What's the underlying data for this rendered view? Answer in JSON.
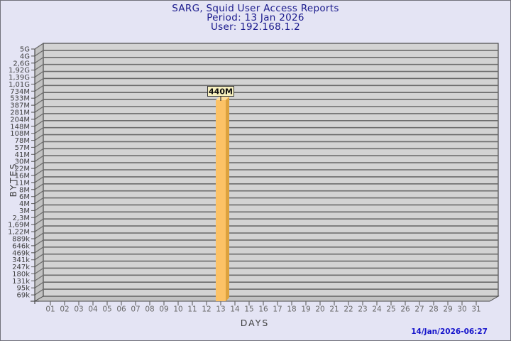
{
  "header": {
    "title": "SARG, Squid User Access Reports",
    "period": "Period: 13 Jan 2026",
    "user": "User: 192.168.1.2"
  },
  "footer": {
    "timestamp": "14/Jan/2026-06:27"
  },
  "colors": {
    "background": "#e4e4f4",
    "title_text": "#19198c",
    "timestamp_text": "#1513cb",
    "back_wall": "#d3d3d3",
    "side_wall": "#c2c2c2",
    "grid_line": "#6b6b6b",
    "wall_outline": "#4a4a4a",
    "bar_face": "#fcc266",
    "bar_side": "#dda23e",
    "bar_top": "#fedd9a",
    "bar_label_bg": "#f7f0be",
    "bar_label_border": "#3a3a3a"
  },
  "chart_data": {
    "type": "bar",
    "style": "3d-bar",
    "title": "SARG, Squid User Access Reports",
    "period": "13 Jan 2026",
    "user": "192.168.1.2",
    "xlabel": "DAYS",
    "ylabel": "BYTES",
    "grid": true,
    "legend": null,
    "categories": [
      "01",
      "02",
      "03",
      "04",
      "05",
      "06",
      "07",
      "08",
      "09",
      "10",
      "11",
      "12",
      "13",
      "14",
      "15",
      "16",
      "17",
      "18",
      "19",
      "20",
      "21",
      "22",
      "23",
      "24",
      "25",
      "26",
      "27",
      "28",
      "29",
      "30",
      "31"
    ],
    "values": [
      0,
      0,
      0,
      0,
      0,
      0,
      0,
      0,
      0,
      0,
      0,
      0,
      440000000,
      0,
      0,
      0,
      0,
      0,
      0,
      0,
      0,
      0,
      0,
      0,
      0,
      0,
      0,
      0,
      0,
      0,
      0
    ],
    "highlight": {
      "category": "13",
      "index": 12,
      "label": "440M",
      "value_bytes": 440000000
    },
    "y_tick_labels": [
      "5G",
      "4G",
      "2,6G",
      "1,92G",
      "1,39G",
      "1,01G",
      "734M",
      "533M",
      "387M",
      "281M",
      "204M",
      "148M",
      "108M",
      "78M",
      "57M",
      "41M",
      "30M",
      "22M",
      "16M",
      "11M",
      "8M",
      "6M",
      "4M",
      "3M",
      "2,3M",
      "1,69M",
      "1,22M",
      "889k",
      "646k",
      "469k",
      "341k",
      "247k",
      "180k",
      "131k",
      "95k",
      "69k"
    ],
    "y_range": [
      "69k",
      "5G"
    ]
  }
}
